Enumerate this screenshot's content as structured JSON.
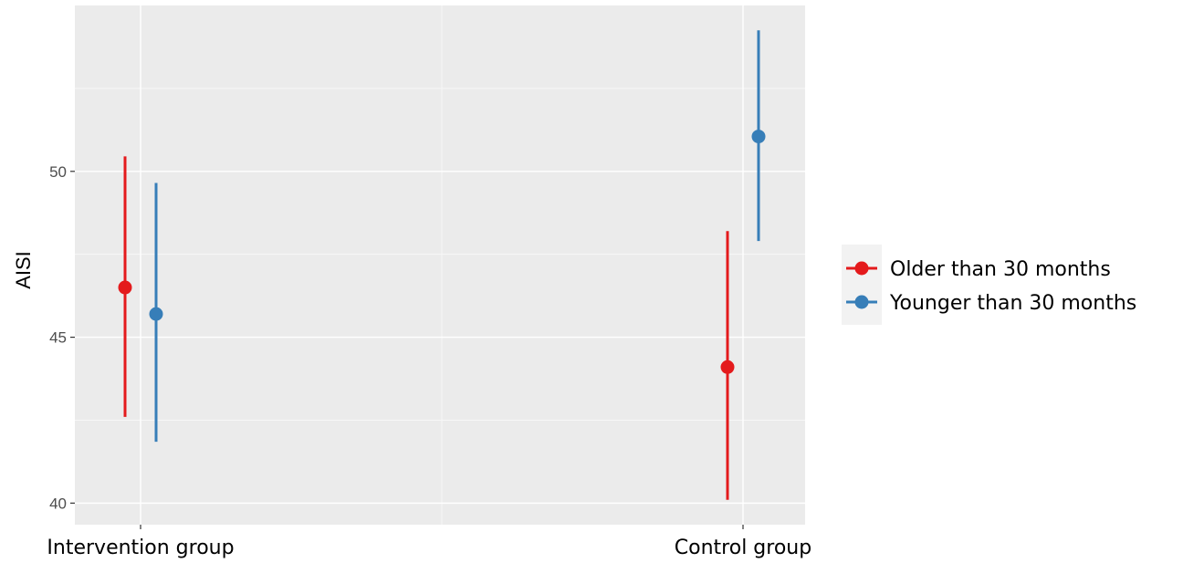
{
  "chart_data": {
    "type": "scatter",
    "subtype": "pointrange",
    "title": "",
    "xlabel": "",
    "ylabel": "AISI",
    "categories": [
      "Intervention group",
      "Control group"
    ],
    "ylim": [
      39.35,
      55.0
    ],
    "yticks": [
      40,
      45,
      50
    ],
    "grid": true,
    "legend_position": "right",
    "series": [
      {
        "name": "Older than 30 months",
        "color": "#e41a1c",
        "points": [
          {
            "category": "Intervention group",
            "y": 46.5,
            "ymin": 42.6,
            "ymax": 50.45
          },
          {
            "category": "Control group",
            "y": 44.1,
            "ymin": 40.1,
            "ymax": 48.2
          }
        ]
      },
      {
        "name": "Younger than 30 months",
        "color": "#377eb8",
        "points": [
          {
            "category": "Intervention group",
            "y": 45.7,
            "ymin": 41.85,
            "ymax": 49.65
          },
          {
            "category": "Control group",
            "y": 51.05,
            "ymin": 47.9,
            "ymax": 54.25
          }
        ]
      }
    ]
  }
}
